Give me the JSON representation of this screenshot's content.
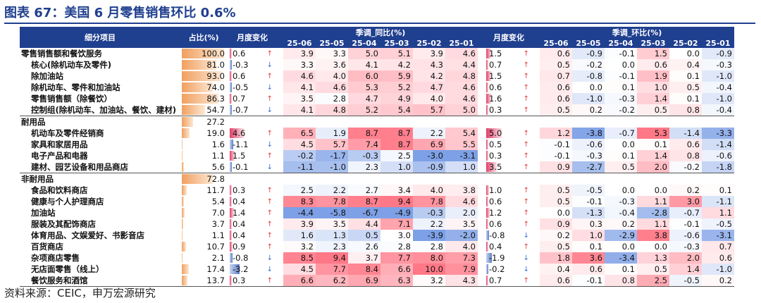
{
  "title": "图表 67：美国 6 月零售销售环比 0.6%",
  "source": "资料来源：CEIC，申万宏源研究",
  "headers": {
    "item": "细分项目",
    "share": "占比(%)",
    "mchg": "月度变化",
    "yoy_group": "季调_同比(%)",
    "mchg2": "月度变化",
    "mom_group": "季调_环比(%)",
    "months": [
      "25-06",
      "25-05",
      "25-04",
      "25-03",
      "25-02",
      "25-01"
    ]
  },
  "colors": {
    "header_bg": "#1f3f8f",
    "high": "#f07080",
    "low": "#8aa4dc"
  },
  "rows": [
    {
      "name": "零售销售额和餐饮服务",
      "level": 0,
      "share": "100.0",
      "mchg": "0.6",
      "mdir": "up",
      "yoy": [
        "3.9",
        "3.3",
        "5.0",
        "5.1",
        "3.9",
        "4.6"
      ],
      "mchg2": "1.5",
      "mdir2": "up",
      "mom": [
        "0.6",
        "-0.9",
        "-0.1",
        "1.5",
        "0.0",
        "-0.9"
      ]
    },
    {
      "name": "核心(除机动车及零件)",
      "level": 1,
      "share": "81.0",
      "mchg": "-0.3",
      "mdir": "dn",
      "yoy": [
        "3.3",
        "3.6",
        "4.1",
        "4.2",
        "4.3",
        "4.4"
      ],
      "mchg2": "0.7",
      "mdir2": "up",
      "mom": [
        "0.5",
        "-0.2",
        "0.0",
        "0.6",
        "0.4",
        "-0.3"
      ]
    },
    {
      "name": "除加油站",
      "level": 1,
      "share": "93.0",
      "mchg": "0.6",
      "mdir": "up",
      "yoy": [
        "4.6",
        "4.0",
        "6.0",
        "5.9",
        "4.2",
        "4.8"
      ],
      "mchg2": "1.5",
      "mdir2": "up",
      "mom": [
        "0.7",
        "-0.8",
        "-0.1",
        "1.9",
        "0.1",
        "-1.0"
      ]
    },
    {
      "name": "除机动车、零件和加油站",
      "level": 1,
      "share": "74.0",
      "mchg": "-0.5",
      "mdir": "dn",
      "yoy": [
        "4.1",
        "4.6",
        "5.3",
        "5.2",
        "4.7",
        "4.6"
      ],
      "mchg2": "0.6",
      "mdir2": "up",
      "mom": [
        "0.6",
        "0.0",
        "0.1",
        "1.0",
        "0.5",
        "-0.4"
      ]
    },
    {
      "name": "零售销售额（除餐饮）",
      "level": 1,
      "share": "86.3",
      "mchg": "0.7",
      "mdir": "up",
      "yoy": [
        "3.5",
        "2.8",
        "4.7",
        "4.9",
        "4.0",
        "4.6"
      ],
      "mchg2": "1.6",
      "mdir2": "up",
      "mom": [
        "0.6",
        "-1.0",
        "-0.3",
        "1.4",
        "0.1",
        "-1.0"
      ]
    },
    {
      "name": "控制组(除机动车、加油站、餐饮、建材)",
      "level": 1,
      "share": "54.7",
      "mchg": "-0.7",
      "mdir": "dn",
      "yoy": [
        "4.1",
        "4.8",
        "5.2",
        "5.4",
        "5.7",
        "5.0"
      ],
      "mchg2": "0.3",
      "mdir2": "up",
      "mom": [
        "0.5",
        "0.2",
        "-0.2",
        "0.5",
        "0.8",
        "-0.4"
      ]
    },
    {
      "name": "耐用品",
      "level": 0,
      "section": true,
      "share": "27.2",
      "mchg": "",
      "mdir": "",
      "yoy": [
        "",
        "",
        "",
        "",
        "",
        ""
      ],
      "mchg2": "",
      "mdir2": "",
      "mom": [
        "",
        "",
        "",
        "",
        "",
        ""
      ]
    },
    {
      "name": "机动车及零件经销商",
      "level": 1,
      "share": "19.0",
      "mchg": "4.6",
      "mdir": "up",
      "yoy": [
        "6.5",
        "1.9",
        "8.7",
        "8.7",
        "2.2",
        "5.4"
      ],
      "mchg2": "5.0",
      "mdir2": "up",
      "mom": [
        "1.2",
        "-3.8",
        "-0.7",
        "5.3",
        "-1.4",
        "-3.3"
      ]
    },
    {
      "name": "家具和家居用品",
      "level": 1,
      "share": "1.6",
      "mchg": "-1.1",
      "mdir": "dn",
      "yoy": [
        "4.5",
        "5.7",
        "7.4",
        "8.7",
        "6.9",
        "5.5"
      ],
      "mchg2": "0.5",
      "mdir2": "up",
      "mom": [
        "-0.1",
        "-0.6",
        "0.0",
        "0.1",
        "0.6",
        "-1.4"
      ]
    },
    {
      "name": "电子产品和电器",
      "level": 1,
      "share": "1.1",
      "mchg": "1.5",
      "mdir": "up",
      "yoy": [
        "-0.2",
        "-1.7",
        "-0.3",
        "2.5",
        "-3.0",
        "-3.1"
      ],
      "mchg2": "0.3",
      "mdir2": "up",
      "mom": [
        "-0.1",
        "-0.3",
        "0.1",
        "1.4",
        "0.8",
        "-0.6"
      ]
    },
    {
      "name": "建材、园艺设备和用品商店",
      "level": 1,
      "share": "5.6",
      "mchg": "-0.1",
      "mdir": "dn",
      "yoy": [
        "-1.1",
        "-1.0",
        "2.3",
        "1.0",
        "-0.9",
        "1.0"
      ],
      "mchg2": "3.5",
      "mdir2": "up",
      "mom": [
        "0.9",
        "-2.7",
        "0.5",
        "2.0",
        "-0.2",
        "-1.8"
      ]
    },
    {
      "name": "非耐用品",
      "level": 0,
      "section": true,
      "share": "72.8",
      "mchg": "",
      "mdir": "",
      "yoy": [
        "",
        "",
        "",
        "",
        "",
        ""
      ],
      "mchg2": "",
      "mdir2": "",
      "mom": [
        "",
        "",
        "",
        "",
        "",
        ""
      ]
    },
    {
      "name": "食品和饮料商店",
      "level": 1,
      "share": "11.7",
      "mchg": "0.3",
      "mdir": "up",
      "yoy": [
        "2.5",
        "2.2",
        "2.7",
        "3.4",
        "4.0",
        "3.8"
      ],
      "mchg2": "1.0",
      "mdir2": "up",
      "mom": [
        "0.5",
        "-0.5",
        "0.0",
        "0.0",
        "0.2",
        "0.1"
      ]
    },
    {
      "name": "健康与个人护理商店",
      "level": 1,
      "share": "5.4",
      "mchg": "0.4",
      "mdir": "up",
      "yoy": [
        "8.3",
        "7.8",
        "8.7",
        "9.4",
        "7.8",
        "4.6"
      ],
      "mchg2": "0.6",
      "mdir2": "up",
      "mom": [
        "0.5",
        "-0.1",
        "-0.3",
        "1.1",
        "3.0",
        "-1.1"
      ]
    },
    {
      "name": "加油站",
      "level": 1,
      "share": "7.0",
      "mchg": "1.4",
      "mdir": "up",
      "yoy": [
        "-4.4",
        "-5.8",
        "-6.7",
        "-4.9",
        "-0.3",
        "2.0"
      ],
      "mchg2": "1.2",
      "mdir2": "up",
      "mom": [
        "0.0",
        "-1.3",
        "-0.4",
        "-2.8",
        "-0.7",
        "1.1"
      ]
    },
    {
      "name": "服装及其配饰商店",
      "level": 1,
      "share": "3.7",
      "mchg": "0.4",
      "mdir": "up",
      "yoy": [
        "3.9",
        "3.5",
        "4.4",
        "7.1",
        "2.2",
        "3.5"
      ],
      "mchg2": "0.6",
      "mdir2": "up",
      "mom": [
        "0.9",
        "0.3",
        "0.2",
        "1.1",
        "-0.1",
        "-0.5"
      ]
    },
    {
      "name": "体育用品、文娱爱好、书影音店",
      "level": 1,
      "share": "1.1",
      "mchg": "0.4",
      "mdir": "up",
      "yoy": [
        "1.6",
        "1.3",
        "0.5",
        "3.0",
        "-3.9",
        "-2.0"
      ],
      "mchg2": "-0.8",
      "mdir2": "dn",
      "mom": [
        "0.2",
        "1.0",
        "-2.9",
        "3.8",
        "-0.6",
        "-3.1"
      ]
    },
    {
      "name": "百货商店",
      "level": 1,
      "share": "10.7",
      "mchg": "0.9",
      "mdir": "up",
      "yoy": [
        "3.2",
        "2.3",
        "2.6",
        "2.8",
        "2.8",
        "4.0"
      ],
      "mchg2": "0.4",
      "mdir2": "up",
      "mom": [
        "0.5",
        "0.1",
        "0.0",
        "0.0",
        "-0.3",
        "0.7"
      ]
    },
    {
      "name": "杂项商店零售",
      "level": 1,
      "share": "2.1",
      "mchg": "-0.8",
      "mdir": "dn",
      "yoy": [
        "8.5",
        "9.4",
        "3.7",
        "7.7",
        "8.0",
        "7.3"
      ],
      "mchg2": "-1.9",
      "mdir2": "dn",
      "mom": [
        "1.8",
        "3.6",
        "-3.4",
        "1.3",
        "2.0",
        "0.6"
      ]
    },
    {
      "name": "无店面零售（线上）",
      "level": 1,
      "share": "17.4",
      "mchg": "-3.2",
      "mdir": "dn",
      "yoy": [
        "4.5",
        "7.7",
        "8.4",
        "6.6",
        "10.0",
        "7.9"
      ],
      "mchg2": "-0.2",
      "mdir2": "dn",
      "mom": [
        "0.4",
        "0.6",
        "0.1",
        "0.5",
        "1.4",
        "-1.0"
      ]
    },
    {
      "name": "餐饮服务和酒馆",
      "level": 1,
      "share": "13.7",
      "mchg": "0.3",
      "mdir": "up",
      "yoy": [
        "6.6",
        "6.2",
        "6.9",
        "6.3",
        "3.2",
        "4.3"
      ],
      "mchg2": "0.7",
      "mdir2": "up",
      "mom": [
        "0.6",
        "-0.1",
        "0.8",
        "2.5",
        "-0.5",
        "0.2"
      ]
    }
  ]
}
